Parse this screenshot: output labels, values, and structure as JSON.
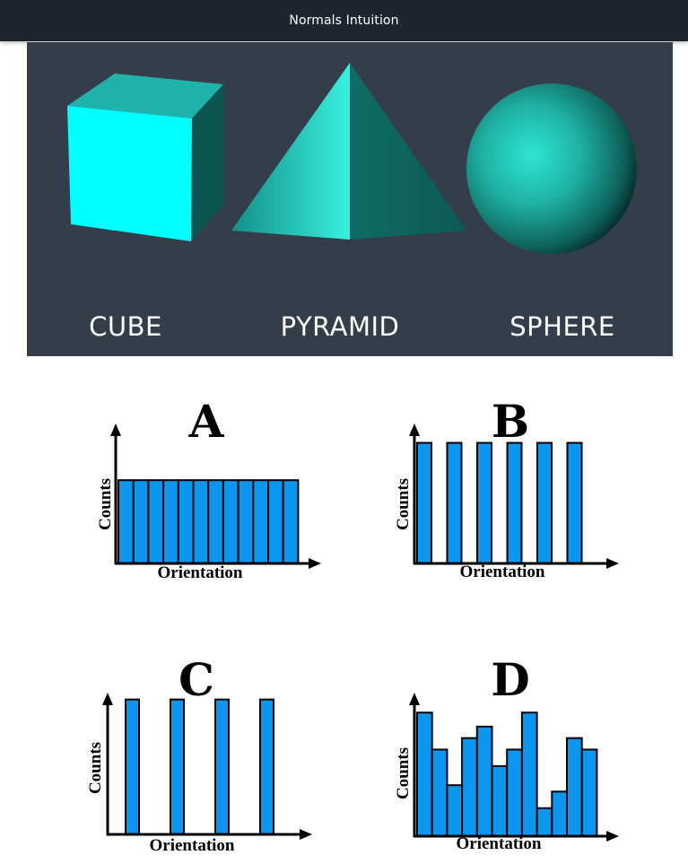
{
  "app": {
    "title": "Normals Intuition"
  },
  "shapes": [
    {
      "label": "CUBE",
      "color": "#00ffff"
    },
    {
      "label": "PYRAMID",
      "color": "#1fbfb3"
    },
    {
      "label": "SPHERE",
      "color": "#20b3a5"
    }
  ],
  "colors": {
    "bar": "#0b96f0",
    "panel": "#343e4b",
    "topbar": "#1e252e"
  },
  "chart_data": [
    {
      "type": "bar",
      "title": "A",
      "xlabel": "Orientation",
      "ylabel": "Counts",
      "values": [
        0.64,
        0.64,
        0.64,
        0.64,
        0.64,
        0.64,
        0.64,
        0.64,
        0.64,
        0.64,
        0.64,
        0.64
      ],
      "ylim": [
        0,
        1
      ],
      "layout": "contiguous"
    },
    {
      "type": "bar",
      "title": "B",
      "xlabel": "Orientation",
      "ylabel": "Counts",
      "values": [
        0.96,
        0.96,
        0.96,
        0.96,
        0.96,
        0.96
      ],
      "ylim": [
        0,
        1
      ],
      "layout": "spaced"
    },
    {
      "type": "bar",
      "title": "C",
      "xlabel": "Orientation",
      "ylabel": "Counts",
      "values": [
        0.97,
        0.97,
        0.97,
        0.97
      ],
      "ylim": [
        0,
        1
      ],
      "layout": "spaced"
    },
    {
      "type": "bar",
      "title": "D",
      "xlabel": "Orientation",
      "ylabel": "Counts",
      "values": [
        0.97,
        0.68,
        0.4,
        0.77,
        0.86,
        0.55,
        0.68,
        0.97,
        0.22,
        0.35,
        0.77,
        0.68
      ],
      "ylim": [
        0,
        1
      ],
      "layout": "contiguous"
    }
  ]
}
